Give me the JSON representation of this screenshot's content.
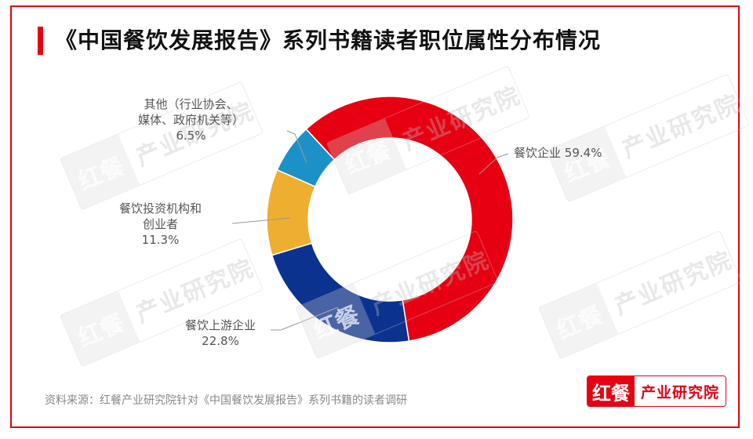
{
  "title": "《中国餐饮发展报告》系列书籍读者职位属性分布情况",
  "source": "资料来源：红餐产业研究院针对《中国餐饮发展报告》系列书籍的读者调研",
  "brand": {
    "logo": "红餐",
    "text": "产业研究院"
  },
  "watermark": {
    "logo": "红餐",
    "text": "产业研究院"
  },
  "colors": {
    "frame": "#e60012",
    "red": "#e60012",
    "dark_blue": "#0c3290",
    "orange": "#eeae30",
    "light_blue": "#1b91c7"
  },
  "labels": {
    "catering": {
      "name": "餐饮企业",
      "value": "59.4%"
    },
    "upstream": {
      "name": "餐饮上游企业",
      "value": "22.8%"
    },
    "investors": {
      "line1": "餐饮投资机构和",
      "line2": "创业者",
      "value": "11.3%"
    },
    "other": {
      "line1": "其他（行业协会、",
      "line2": "媒体、政府机关等）",
      "value": "6.5%"
    }
  },
  "chart_data": {
    "type": "pie",
    "subtype": "donut",
    "title": "《中国餐饮发展报告》系列书籍读者职位属性分布情况",
    "categories": [
      "餐饮企业",
      "餐饮上游企业",
      "餐饮投资机构和创业者",
      "其他（行业协会、媒体、政府机关等）"
    ],
    "values": [
      59.4,
      22.8,
      11.3,
      6.5
    ],
    "unit": "%",
    "colors": [
      "#e60012",
      "#0c3290",
      "#eeae30",
      "#1b91c7"
    ],
    "legend": "none (leader-line labels)",
    "source": "资料来源：红餐产业研究院针对《中国餐饮发展报告》系列书籍的读者调研"
  }
}
